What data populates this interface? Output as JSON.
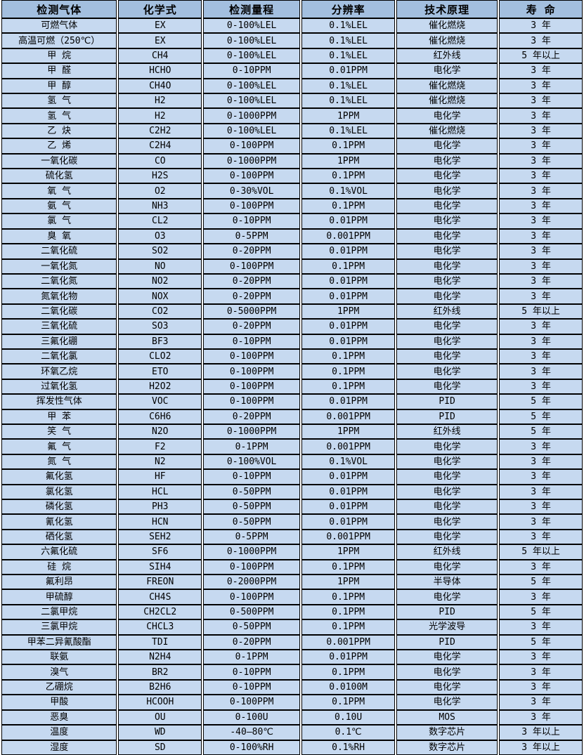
{
  "colors": {
    "header_bg": "#a3bfdf",
    "row_bg": "#c6d9f0",
    "border": "#000000",
    "gutter": "#ffffff"
  },
  "table": {
    "headers": [
      "检测气体",
      "化学式",
      "检测量程",
      "分辨率",
      "技术原理",
      "寿 命"
    ],
    "column_keys": [
      "gas",
      "formula",
      "range",
      "resolution",
      "principle",
      "lifespan"
    ],
    "rows": [
      [
        "可燃气体",
        "EX",
        "0-100%LEL",
        "0.1%LEL",
        "催化燃烧",
        "3 年"
      ],
      [
        "高温可燃（250℃）",
        "EX",
        "0-100%LEL",
        "0.1%LEL",
        "催化燃烧",
        "3 年"
      ],
      [
        "甲 烷",
        "CH4",
        "0-100%LEL",
        "0.1%LEL",
        "红外线",
        "5 年以上"
      ],
      [
        "甲 醛",
        "HCHO",
        "0-10PPM",
        "0.01PPM",
        "电化学",
        "3 年"
      ],
      [
        "甲 醇",
        "CH4O",
        "0-100%LEL",
        "0.1%LEL",
        "催化燃烧",
        "3 年"
      ],
      [
        "氢 气",
        "H2",
        "0-100%LEL",
        "0.1%LEL",
        "催化燃烧",
        "3 年"
      ],
      [
        "氢 气",
        "H2",
        "0-1000PPM",
        "1PPM",
        "电化学",
        "3 年"
      ],
      [
        "乙 炔",
        "C2H2",
        "0-100%LEL",
        "0.1%LEL",
        "催化燃烧",
        "3 年"
      ],
      [
        "乙 烯",
        "C2H4",
        "0-100PPM",
        "0.1PPM",
        "电化学",
        "3 年"
      ],
      [
        "一氧化碳",
        "CO",
        "0-1000PPM",
        "1PPM",
        "电化学",
        "3 年"
      ],
      [
        "硫化氢",
        "H2S",
        "0-100PPM",
        "0.1PPM",
        "电化学",
        "3 年"
      ],
      [
        "氧 气",
        "O2",
        "0-30%VOL",
        "0.1%VOL",
        "电化学",
        "3 年"
      ],
      [
        "氨 气",
        "NH3",
        "0-100PPM",
        "0.1PPM",
        "电化学",
        "3 年"
      ],
      [
        "氯 气",
        "CL2",
        "0-10PPM",
        "0.01PPM",
        "电化学",
        "3 年"
      ],
      [
        "臭 氧",
        "O3",
        "0-5PPM",
        "0.001PPM",
        "电化学",
        "3 年"
      ],
      [
        "二氧化硫",
        "SO2",
        "0-20PPM",
        "0.01PPM",
        "电化学",
        "3 年"
      ],
      [
        "一氧化氮",
        "NO",
        "0-100PPM",
        "0.1PPM",
        "电化学",
        "3 年"
      ],
      [
        "二氧化氮",
        "NO2",
        "0-20PPM",
        "0.01PPM",
        "电化学",
        "3 年"
      ],
      [
        "氮氧化物",
        "NOX",
        "0-20PPM",
        "0.01PPM",
        "电化学",
        "3 年"
      ],
      [
        "二氧化碳",
        "CO2",
        "0-5000PPM",
        "1PPM",
        "红外线",
        "5 年以上"
      ],
      [
        "三氧化硫",
        "SO3",
        "0-20PPM",
        "0.01PPM",
        "电化学",
        "3 年"
      ],
      [
        "三氟化硼",
        "BF3",
        "0-10PPM",
        "0.01PPM",
        "电化学",
        "3 年"
      ],
      [
        "二氧化氯",
        "CLO2",
        "0-100PPM",
        "0.1PPM",
        "电化学",
        "3 年"
      ],
      [
        "环氧乙烷",
        "ETO",
        "0-100PPM",
        "0.1PPM",
        "电化学",
        "3 年"
      ],
      [
        "过氧化氢",
        "H2O2",
        "0-100PPM",
        "0.1PPM",
        "电化学",
        "3 年"
      ],
      [
        "挥发性气体",
        "VOC",
        "0-100PPM",
        "0.01PPM",
        "PID",
        "5 年"
      ],
      [
        "甲 苯",
        "C6H6",
        "0-20PPM",
        "0.001PPM",
        "PID",
        "5 年"
      ],
      [
        "笑 气",
        "N2O",
        "0-1000PPM",
        "1PPM",
        "红外线",
        "5 年"
      ],
      [
        "氟 气",
        "F2",
        "0-1PPM",
        "0.001PPM",
        "电化学",
        "3 年"
      ],
      [
        "氮 气",
        "N2",
        "0-100%VOL",
        "0.1%VOL",
        "电化学",
        "3 年"
      ],
      [
        "氟化氢",
        "HF",
        "0-10PPM",
        "0.01PPM",
        "电化学",
        "3 年"
      ],
      [
        "氯化氢",
        "HCL",
        "0-50PPM",
        "0.01PPM",
        "电化学",
        "3 年"
      ],
      [
        "磷化氢",
        "PH3",
        "0-50PPM",
        "0.01PPM",
        "电化学",
        "3 年"
      ],
      [
        "氰化氢",
        "HCN",
        "0-50PPM",
        "0.01PPM",
        "电化学",
        "3 年"
      ],
      [
        "硒化氢",
        "SEH2",
        "0-5PPM",
        "0.001PPM",
        "电化学",
        "3 年"
      ],
      [
        "六氟化硫",
        "SF6",
        "0-1000PPM",
        "1PPM",
        "红外线",
        "5 年以上"
      ],
      [
        "硅 烷",
        "SIH4",
        "0-100PPM",
        "0.1PPM",
        "电化学",
        "3 年"
      ],
      [
        "氟利昂",
        "FREON",
        "0-2000PPM",
        "1PPM",
        "半导体",
        "5 年"
      ],
      [
        "甲硫醇",
        "CH4S",
        "0-100PPM",
        "0.1PPM",
        "电化学",
        "3 年"
      ],
      [
        "二氯甲烷",
        "CH2CL2",
        "0-500PPM",
        "0.1PPM",
        "PID",
        "5 年"
      ],
      [
        "三氯甲烷",
        "CHCL3",
        "0-50PPM",
        "0.1PPM",
        "光学波导",
        "3 年"
      ],
      [
        "甲苯二异氰酸酯",
        "TDI",
        "0-20PPM",
        "0.001PPM",
        "PID",
        "5 年"
      ],
      [
        "联氨",
        "N2H4",
        "0-1PPM",
        "0.01PPM",
        "电化学",
        "3 年"
      ],
      [
        "溴气",
        "BR2",
        "0-10PPM",
        "0.1PPM",
        "电化学",
        "3 年"
      ],
      [
        "乙硼烷",
        "B2H6",
        "0-10PPM",
        "0.0100M",
        "电化学",
        "3 年"
      ],
      [
        "甲酸",
        "HCOOH",
        "0-100PPM",
        "0.1PPM",
        "电化学",
        "3 年"
      ],
      [
        "恶臭",
        "OU",
        "0-100U",
        "0.10U",
        "MOS",
        "3 年"
      ],
      [
        "温度",
        "WD",
        "-40—80℃",
        "0.1℃",
        "数字芯片",
        "3 年以上"
      ],
      [
        "湿度",
        "SD",
        "0-100%RH",
        "0.1%RH",
        "数字芯片",
        "3 年以上"
      ]
    ]
  }
}
